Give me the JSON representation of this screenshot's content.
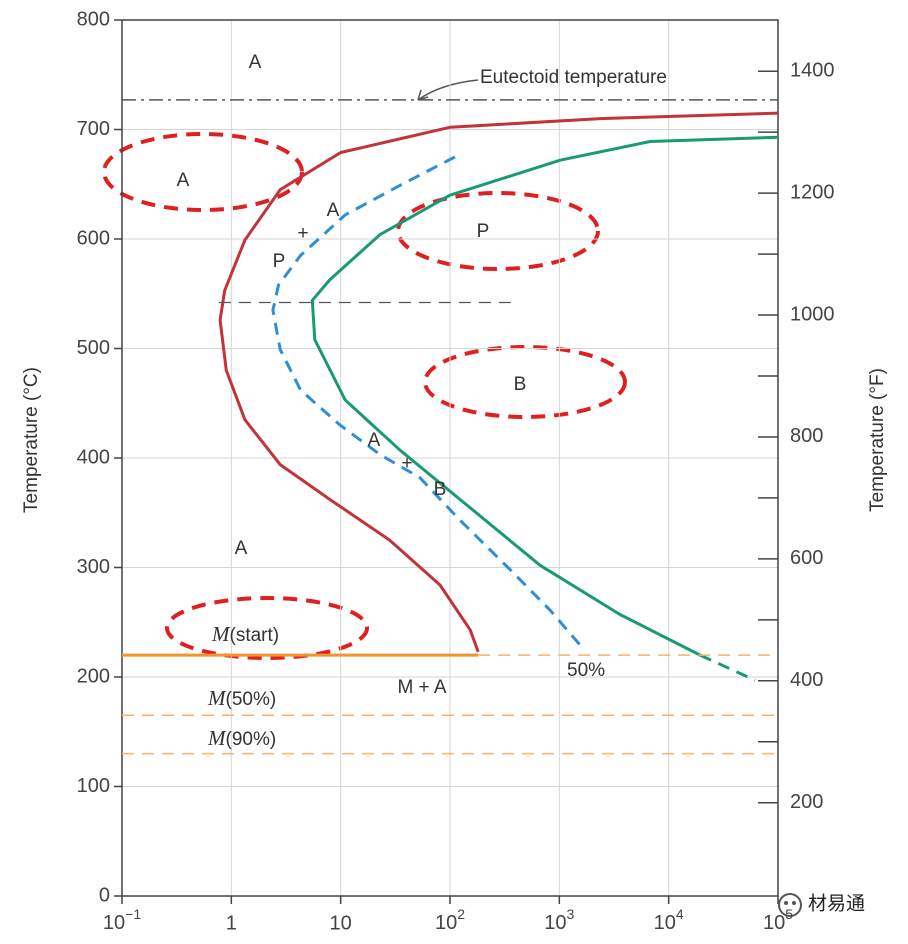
{
  "chart_data": {
    "type": "line",
    "ylabel": "Temperature (°C)",
    "y2label": "Temperature (°F)",
    "xscale": "log",
    "grid": true,
    "xlim": [
      0.1,
      100000
    ],
    "xticks": [
      {
        "value": 0.1,
        "label": "10",
        "sup": "−1"
      },
      1,
      10,
      {
        "value": 100,
        "label": "10",
        "sup": "2"
      },
      {
        "value": 1000,
        "label": "10",
        "sup": "3"
      },
      {
        "value": 10000,
        "label": "10",
        "sup": "4"
      },
      {
        "value": 100000,
        "label": "10",
        "sup": "5"
      }
    ],
    "ylim": [
      0,
      800
    ],
    "yticks": [
      0,
      100,
      200,
      300,
      400,
      500,
      600,
      700,
      800
    ],
    "y2lim": [
      47,
      1484
    ],
    "y2ticks": [
      200,
      400,
      600,
      800,
      1000,
      1200,
      1400
    ],
    "y2minorticks": [
      300,
      500,
      700,
      900,
      1100,
      1300
    ],
    "series": [
      {
        "color": "#c0343a",
        "dash": "solid",
        "line_width": 3,
        "x": [
          100000,
          2360,
          100,
          10,
          2.8,
          1.33,
          0.87,
          0.79,
          0.9,
          1.33,
          2.8,
          8,
          28,
          81,
          153,
          181
        ],
        "values": [
          715,
          710,
          702,
          679,
          645,
          599,
          553,
          526,
          480,
          435,
          394,
          362,
          325,
          284,
          243,
          223
        ]
      },
      {
        "color": "#1a9a74",
        "dash": "solid",
        "line_width": 3,
        "x": [
          100000,
          6780,
          1016,
          100,
          22.9,
          8,
          5.5,
          5.8,
          11,
          35,
          124,
          667,
          3600,
          19400
        ],
        "values": [
          693,
          689,
          672,
          640,
          604,
          563,
          544,
          508,
          453,
          407,
          362,
          302,
          257,
          220
        ]
      },
      {
        "color": "#1a9a74",
        "dash": "dashed",
        "line_width": 3,
        "x": [
          19400,
          61700
        ],
        "values": [
          220,
          197
        ]
      },
      {
        "color": "#2f8fd6",
        "dash": "dashed",
        "line_width": 3,
        "x": [
          111,
          35,
          11,
          4.3,
          2.7,
          2.4,
          2.8,
          4.3,
          9.9,
          23,
          53,
          124,
          355,
          824,
          1650
        ],
        "values": [
          675,
          649,
          622,
          585,
          558,
          535,
          499,
          462,
          430,
          403,
          382,
          343,
          298,
          261,
          226
        ]
      },
      {
        "color": "#555555",
        "dash": "dashdot",
        "line_width": 1.5,
        "x": [
          0.1,
          100000
        ],
        "values": [
          727,
          727
        ]
      },
      {
        "color": "#555555",
        "dash": "dashed",
        "line_width": 1.2,
        "x": [
          0.77,
          400
        ],
        "values": [
          542,
          542
        ]
      },
      {
        "color": "#f0952e",
        "dash": "solid",
        "line_width": 3,
        "x": [
          0.1,
          181
        ],
        "values": [
          220,
          220
        ]
      },
      {
        "color": "#f5b36a",
        "dash": "dashed",
        "line_width": 1.5,
        "x": [
          181,
          100000
        ],
        "values": [
          220,
          220
        ]
      },
      {
        "color": "#f5b36a",
        "dash": "dashed",
        "line_width": 1.5,
        "x": [
          0.1,
          100000
        ],
        "values": [
          165,
          165
        ]
      },
      {
        "color": "#f5b36a",
        "dash": "dashed",
        "line_width": 1.5,
        "x": [
          0.1,
          100000
        ],
        "values": [
          130,
          130
        ]
      }
    ],
    "annotations": [
      "A",
      "Eutectoid temperature",
      "A",
      "P",
      "B",
      "A",
      "+",
      "A",
      "P",
      "A",
      "+",
      "B",
      "M(start)",
      "M + A",
      "M(50%)",
      "M(90%)",
      "50%"
    ],
    "watermark": "材易通"
  }
}
